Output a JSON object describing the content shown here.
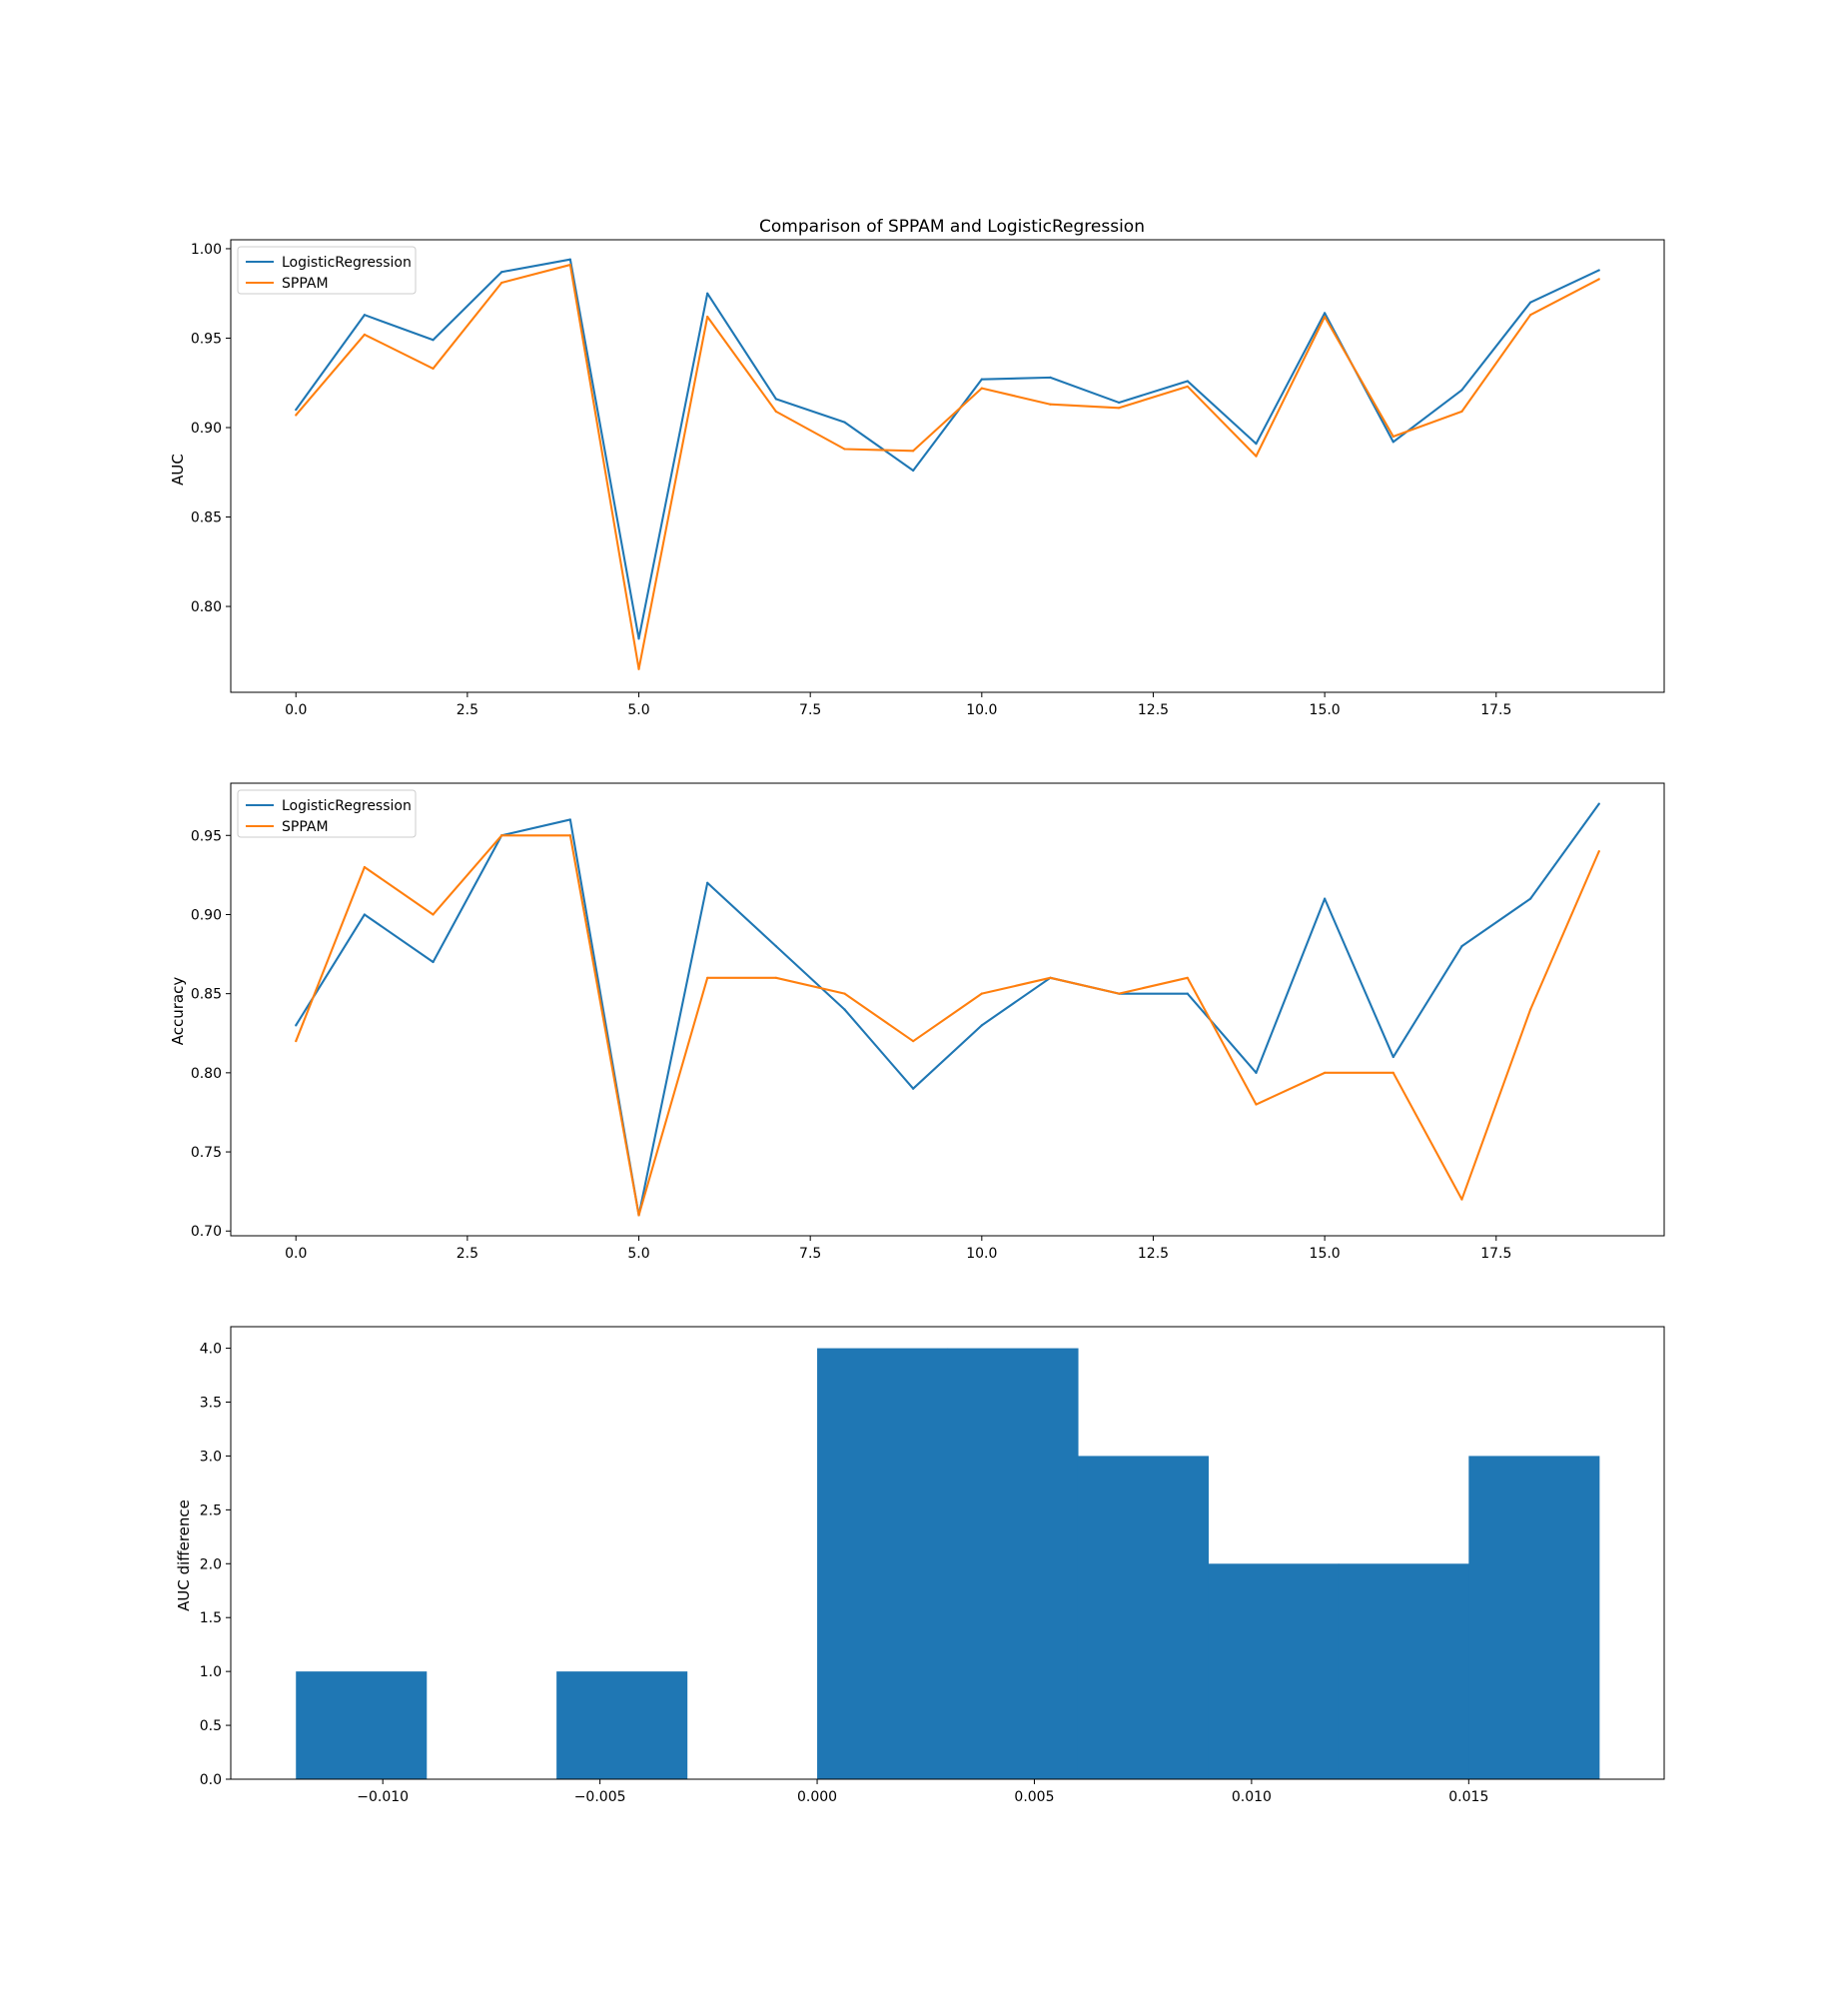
{
  "chart_data": [
    {
      "type": "line",
      "title": "Comparison of SPPAM and LogisticRegression",
      "xlabel": "",
      "ylabel": "AUC",
      "xlim": [
        -0.95,
        19.95
      ],
      "ylim": [
        0.752,
        1.005
      ],
      "xticks": [
        0.0,
        2.5,
        5.0,
        7.5,
        10.0,
        12.5,
        15.0,
        17.5
      ],
      "xtick_labels": [
        "0.0",
        "2.5",
        "5.0",
        "7.5",
        "10.0",
        "12.5",
        "15.0",
        "17.5"
      ],
      "yticks": [
        0.8,
        0.85,
        0.9,
        0.95,
        1.0
      ],
      "ytick_labels": [
        "0.80",
        "0.85",
        "0.90",
        "0.95",
        "1.00"
      ],
      "legend_position": "upper-left",
      "grid": false,
      "x": [
        0,
        1,
        2,
        3,
        4,
        5,
        6,
        7,
        8,
        9,
        10,
        11,
        12,
        13,
        14,
        15,
        16,
        17,
        18,
        19
      ],
      "series": [
        {
          "name": "LogisticRegression",
          "color": "#1f77b4",
          "values": [
            0.91,
            0.963,
            0.949,
            0.987,
            0.994,
            0.782,
            0.975,
            0.916,
            0.903,
            0.876,
            0.927,
            0.928,
            0.914,
            0.926,
            0.891,
            0.964,
            0.892,
            0.921,
            0.97,
            0.988
          ]
        },
        {
          "name": "SPPAM",
          "color": "#ff7f0e",
          "values": [
            0.907,
            0.952,
            0.933,
            0.981,
            0.991,
            0.765,
            0.962,
            0.909,
            0.888,
            0.887,
            0.922,
            0.913,
            0.911,
            0.923,
            0.884,
            0.962,
            0.895,
            0.909,
            0.963,
            0.983
          ]
        }
      ]
    },
    {
      "type": "line",
      "title": "",
      "xlabel": "",
      "ylabel": "Accuracy",
      "xlim": [
        -0.95,
        19.95
      ],
      "ylim": [
        0.697,
        0.983
      ],
      "xticks": [
        0.0,
        2.5,
        5.0,
        7.5,
        10.0,
        12.5,
        15.0,
        17.5
      ],
      "xtick_labels": [
        "0.0",
        "2.5",
        "5.0",
        "7.5",
        "10.0",
        "12.5",
        "15.0",
        "17.5"
      ],
      "yticks": [
        0.7,
        0.75,
        0.8,
        0.85,
        0.9,
        0.95
      ],
      "ytick_labels": [
        "0.70",
        "0.75",
        "0.80",
        "0.85",
        "0.90",
        "0.95"
      ],
      "legend_position": "upper-left",
      "grid": false,
      "x": [
        0,
        1,
        2,
        3,
        4,
        5,
        6,
        7,
        8,
        9,
        10,
        11,
        12,
        13,
        14,
        15,
        16,
        17,
        18,
        19
      ],
      "series": [
        {
          "name": "LogisticRegression",
          "color": "#1f77b4",
          "values": [
            0.83,
            0.9,
            0.87,
            0.95,
            0.96,
            0.71,
            0.92,
            0.88,
            0.84,
            0.79,
            0.83,
            0.86,
            0.85,
            0.85,
            0.8,
            0.91,
            0.81,
            0.88,
            0.91,
            0.97
          ]
        },
        {
          "name": "SPPAM",
          "color": "#ff7f0e",
          "values": [
            0.82,
            0.93,
            0.9,
            0.95,
            0.95,
            0.71,
            0.86,
            0.86,
            0.85,
            0.82,
            0.85,
            0.86,
            0.85,
            0.86,
            0.78,
            0.8,
            0.8,
            0.72,
            0.84,
            0.94
          ]
        }
      ]
    },
    {
      "type": "bar",
      "title": "",
      "xlabel": "",
      "ylabel": "AUC difference",
      "xlim": [
        -0.0135,
        0.0195
      ],
      "ylim": [
        0,
        4.2
      ],
      "xticks": [
        -0.01,
        -0.005,
        0.0,
        0.005,
        0.01,
        0.015
      ],
      "xtick_labels": [
        "−0.010",
        "−0.005",
        "0.000",
        "0.005",
        "0.010",
        "0.015"
      ],
      "yticks": [
        0,
        0.5,
        1.0,
        1.5,
        2.0,
        2.5,
        3.0,
        3.5,
        4.0
      ],
      "ytick_labels": [
        "0.0",
        "0.5",
        "1.0",
        "1.5",
        "2.0",
        "2.5",
        "3.0",
        "3.5",
        "4.0"
      ],
      "grid": false,
      "color": "#1f77b4",
      "bin_edges": [
        -0.012,
        -0.009,
        -0.006,
        -0.003,
        0.0,
        0.003,
        0.006,
        0.009,
        0.012,
        0.015,
        0.018
      ],
      "values": [
        1,
        0,
        1,
        0,
        4,
        4,
        3,
        2,
        2,
        3
      ]
    }
  ]
}
